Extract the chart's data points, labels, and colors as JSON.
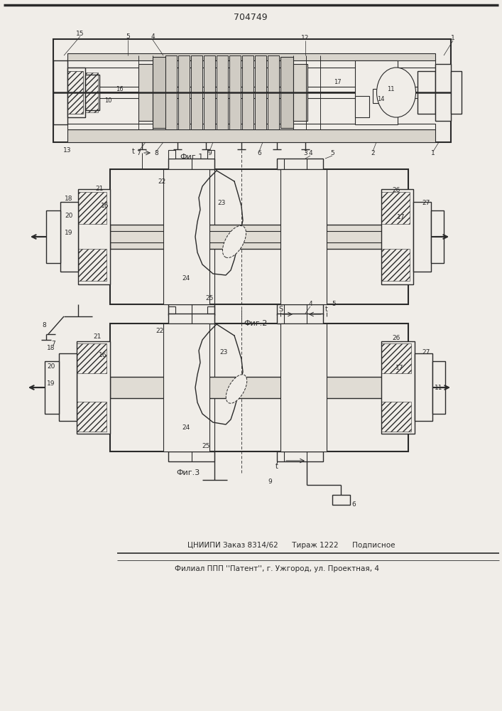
{
  "patent_number": "704749",
  "background_color": "#f0ede8",
  "line_color": "#2a2a2a",
  "hatch_color": "#555555",
  "footer_line1": "ЦНИИПИ Заказ 8314/62      Тираж 1222      Подписное",
  "footer_line2": "Филиал ППП ''Патент'', г. Ужгород, ул. Проектная, 4",
  "fig1_label": "Фиг.1",
  "fig2_label": "Фиг.2",
  "fig3_label": "Фиг.3",
  "title": "704749"
}
